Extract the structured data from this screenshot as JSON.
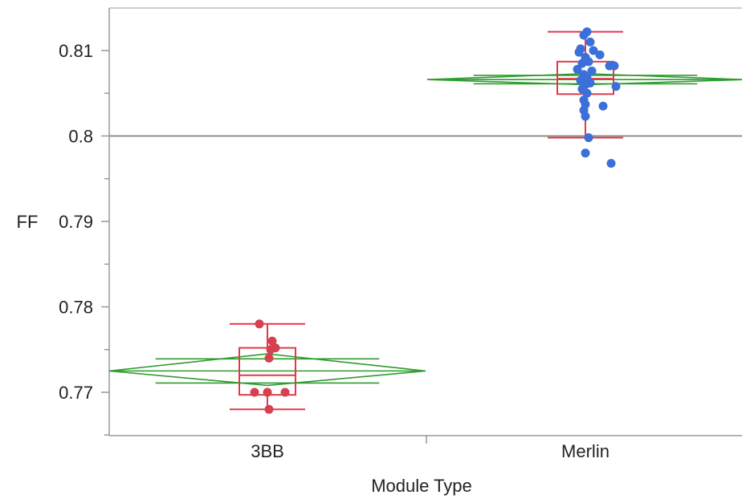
{
  "chart_data": {
    "type": "scatter",
    "subtype": "oneway-means-diamonds-with-boxplots",
    "xlabel": "Module Type",
    "ylabel": "FF",
    "categories": [
      "3BB",
      "Merlin"
    ],
    "ylim": [
      0.765,
      0.815
    ],
    "yticks": [
      0.77,
      0.78,
      0.79,
      0.8,
      0.81
    ],
    "ytick_labels": [
      "0.77",
      "0.78",
      "0.79",
      "0.8",
      "0.81"
    ],
    "reference_line": 0.8,
    "colors": {
      "3BB": "#d6404f",
      "Merlin": "#3b6fd9",
      "box": "#e03a4a",
      "diamond": "#2e9b2e",
      "axis": "#999999"
    },
    "groups": [
      {
        "name": "3BB",
        "mean": 0.7725,
        "ci": [
          0.7708,
          0.7745
        ],
        "box": {
          "min": 0.768,
          "q1": 0.7697,
          "median": 0.772,
          "q3": 0.7752,
          "max": 0.778
        },
        "points": [
          {
            "dx": -10,
            "y": 0.778
          },
          {
            "dx": 6,
            "y": 0.776
          },
          {
            "dx": 10,
            "y": 0.7752
          },
          {
            "dx": 4,
            "y": 0.775
          },
          {
            "dx": 2,
            "y": 0.774
          },
          {
            "dx": -16,
            "y": 0.77
          },
          {
            "dx": 0,
            "y": 0.77
          },
          {
            "dx": 22,
            "y": 0.77
          },
          {
            "dx": 2,
            "y": 0.768
          }
        ]
      },
      {
        "name": "Merlin",
        "mean": 0.8066,
        "ci": [
          0.806,
          0.8073
        ],
        "box": {
          "min": 0.7998,
          "q1": 0.8049,
          "median": 0.8067,
          "q3": 0.8087,
          "max": 0.8122
        },
        "points": [
          {
            "dx": 2,
            "y": 0.8122
          },
          {
            "dx": -2,
            "y": 0.8118
          },
          {
            "dx": 6,
            "y": 0.811
          },
          {
            "dx": -6,
            "y": 0.8102
          },
          {
            "dx": 10,
            "y": 0.81
          },
          {
            "dx": -8,
            "y": 0.8098
          },
          {
            "dx": 18,
            "y": 0.8095
          },
          {
            "dx": 0,
            "y": 0.8092
          },
          {
            "dx": 4,
            "y": 0.8087
          },
          {
            "dx": -4,
            "y": 0.8085
          },
          {
            "dx": 30,
            "y": 0.8082
          },
          {
            "dx": 36,
            "y": 0.8082
          },
          {
            "dx": -10,
            "y": 0.8078
          },
          {
            "dx": 8,
            "y": 0.8076
          },
          {
            "dx": -2,
            "y": 0.8072
          },
          {
            "dx": 2,
            "y": 0.8068
          },
          {
            "dx": -6,
            "y": 0.8065
          },
          {
            "dx": 6,
            "y": 0.8062
          },
          {
            "dx": 0,
            "y": 0.806
          },
          {
            "dx": 38,
            "y": 0.8058
          },
          {
            "dx": -4,
            "y": 0.8055
          },
          {
            "dx": 2,
            "y": 0.805
          },
          {
            "dx": -2,
            "y": 0.8042
          },
          {
            "dx": 0,
            "y": 0.8037
          },
          {
            "dx": 22,
            "y": 0.8035
          },
          {
            "dx": -2,
            "y": 0.803
          },
          {
            "dx": 0,
            "y": 0.8023
          },
          {
            "dx": 4,
            "y": 0.7998
          },
          {
            "dx": 0,
            "y": 0.798
          },
          {
            "dx": 32,
            "y": 0.7968
          }
        ]
      }
    ]
  }
}
